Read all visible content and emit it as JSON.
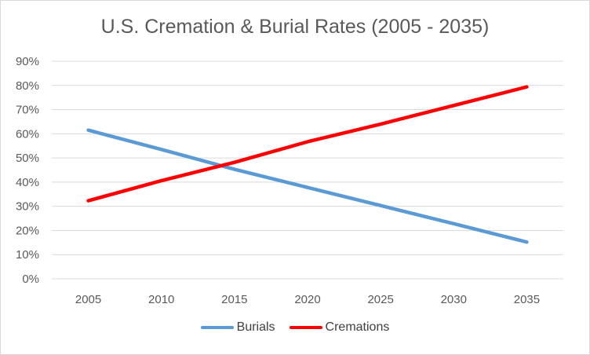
{
  "chart_data": {
    "type": "line",
    "title": "U.S. Cremation & Burial Rates (2005 - 2035)",
    "xlabel": "",
    "ylabel": "",
    "categories": [
      "2005",
      "2010",
      "2015",
      "2020",
      "2025",
      "2030",
      "2035"
    ],
    "ylim": [
      0,
      90
    ],
    "y_ticks": [
      "0%",
      "10%",
      "20%",
      "30%",
      "40%",
      "50%",
      "60%",
      "70%",
      "80%",
      "90%"
    ],
    "grid": true,
    "legend_position": "bottom",
    "series": [
      {
        "name": "Burials",
        "color": "#5b9bd5",
        "values": [
          61.5,
          53.5,
          45.3,
          37.8,
          30.3,
          22.8,
          15.2
        ]
      },
      {
        "name": "Cremations",
        "color": "#ff0000",
        "values": [
          32.3,
          40.6,
          48.2,
          56.7,
          64.0,
          71.7,
          79.4
        ]
      }
    ]
  }
}
